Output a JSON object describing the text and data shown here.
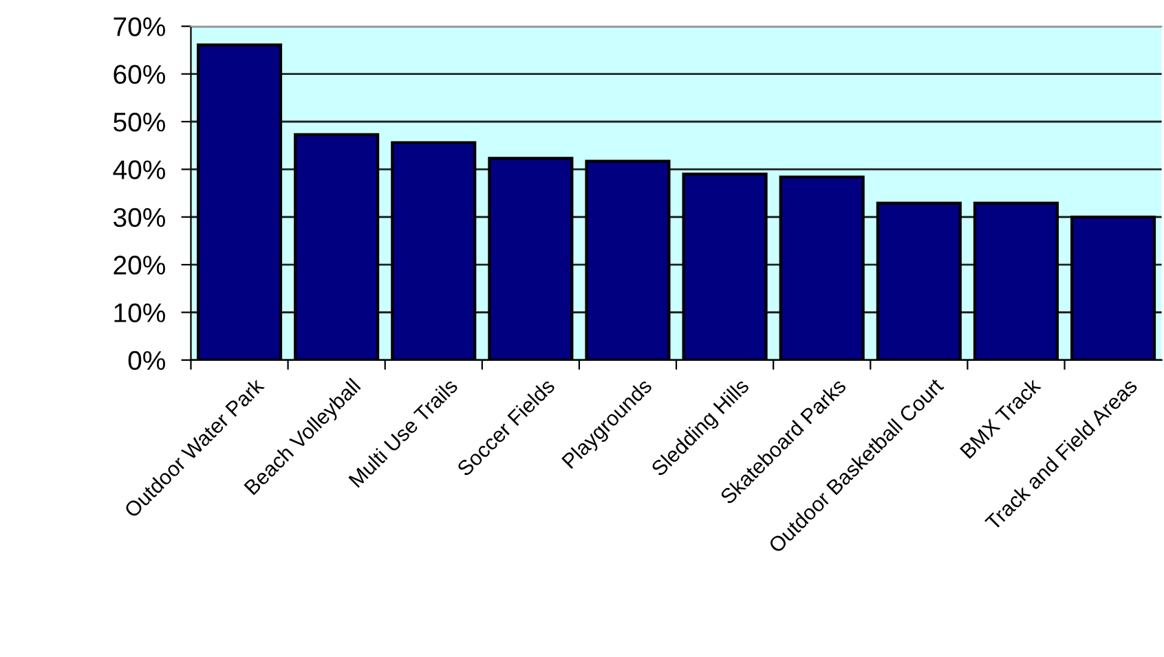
{
  "chart_data": {
    "type": "bar",
    "categories": [
      "Outdoor Water Park",
      "Beach Volleyball",
      "Multi Use Trails",
      "Soccer Fields",
      "Playgrounds",
      "Sledding Hills",
      "Skateboard Parks",
      "Outdoor Basketball Court",
      "BMX Track",
      "Track and Field Areas"
    ],
    "values": [
      66.1,
      47.3,
      45.6,
      42.3,
      41.7,
      39.0,
      38.4,
      32.9,
      32.9,
      30.0
    ],
    "color": "#000080",
    "ylim": [
      0,
      70
    ],
    "yticks": [
      {
        "value": 0,
        "label": "0%"
      },
      {
        "value": 10,
        "label": "10%"
      },
      {
        "value": 20,
        "label": "20%"
      },
      {
        "value": 30,
        "label": "30%"
      },
      {
        "value": 40,
        "label": "40%"
      },
      {
        "value": 50,
        "label": "50%"
      },
      {
        "value": 60,
        "label": "60%"
      },
      {
        "value": 70,
        "label": "70%"
      }
    ],
    "grid": "y",
    "bands": [
      {
        "axis": "y",
        "from": 0,
        "to": 70,
        "color": "#ccffff"
      }
    ]
  }
}
